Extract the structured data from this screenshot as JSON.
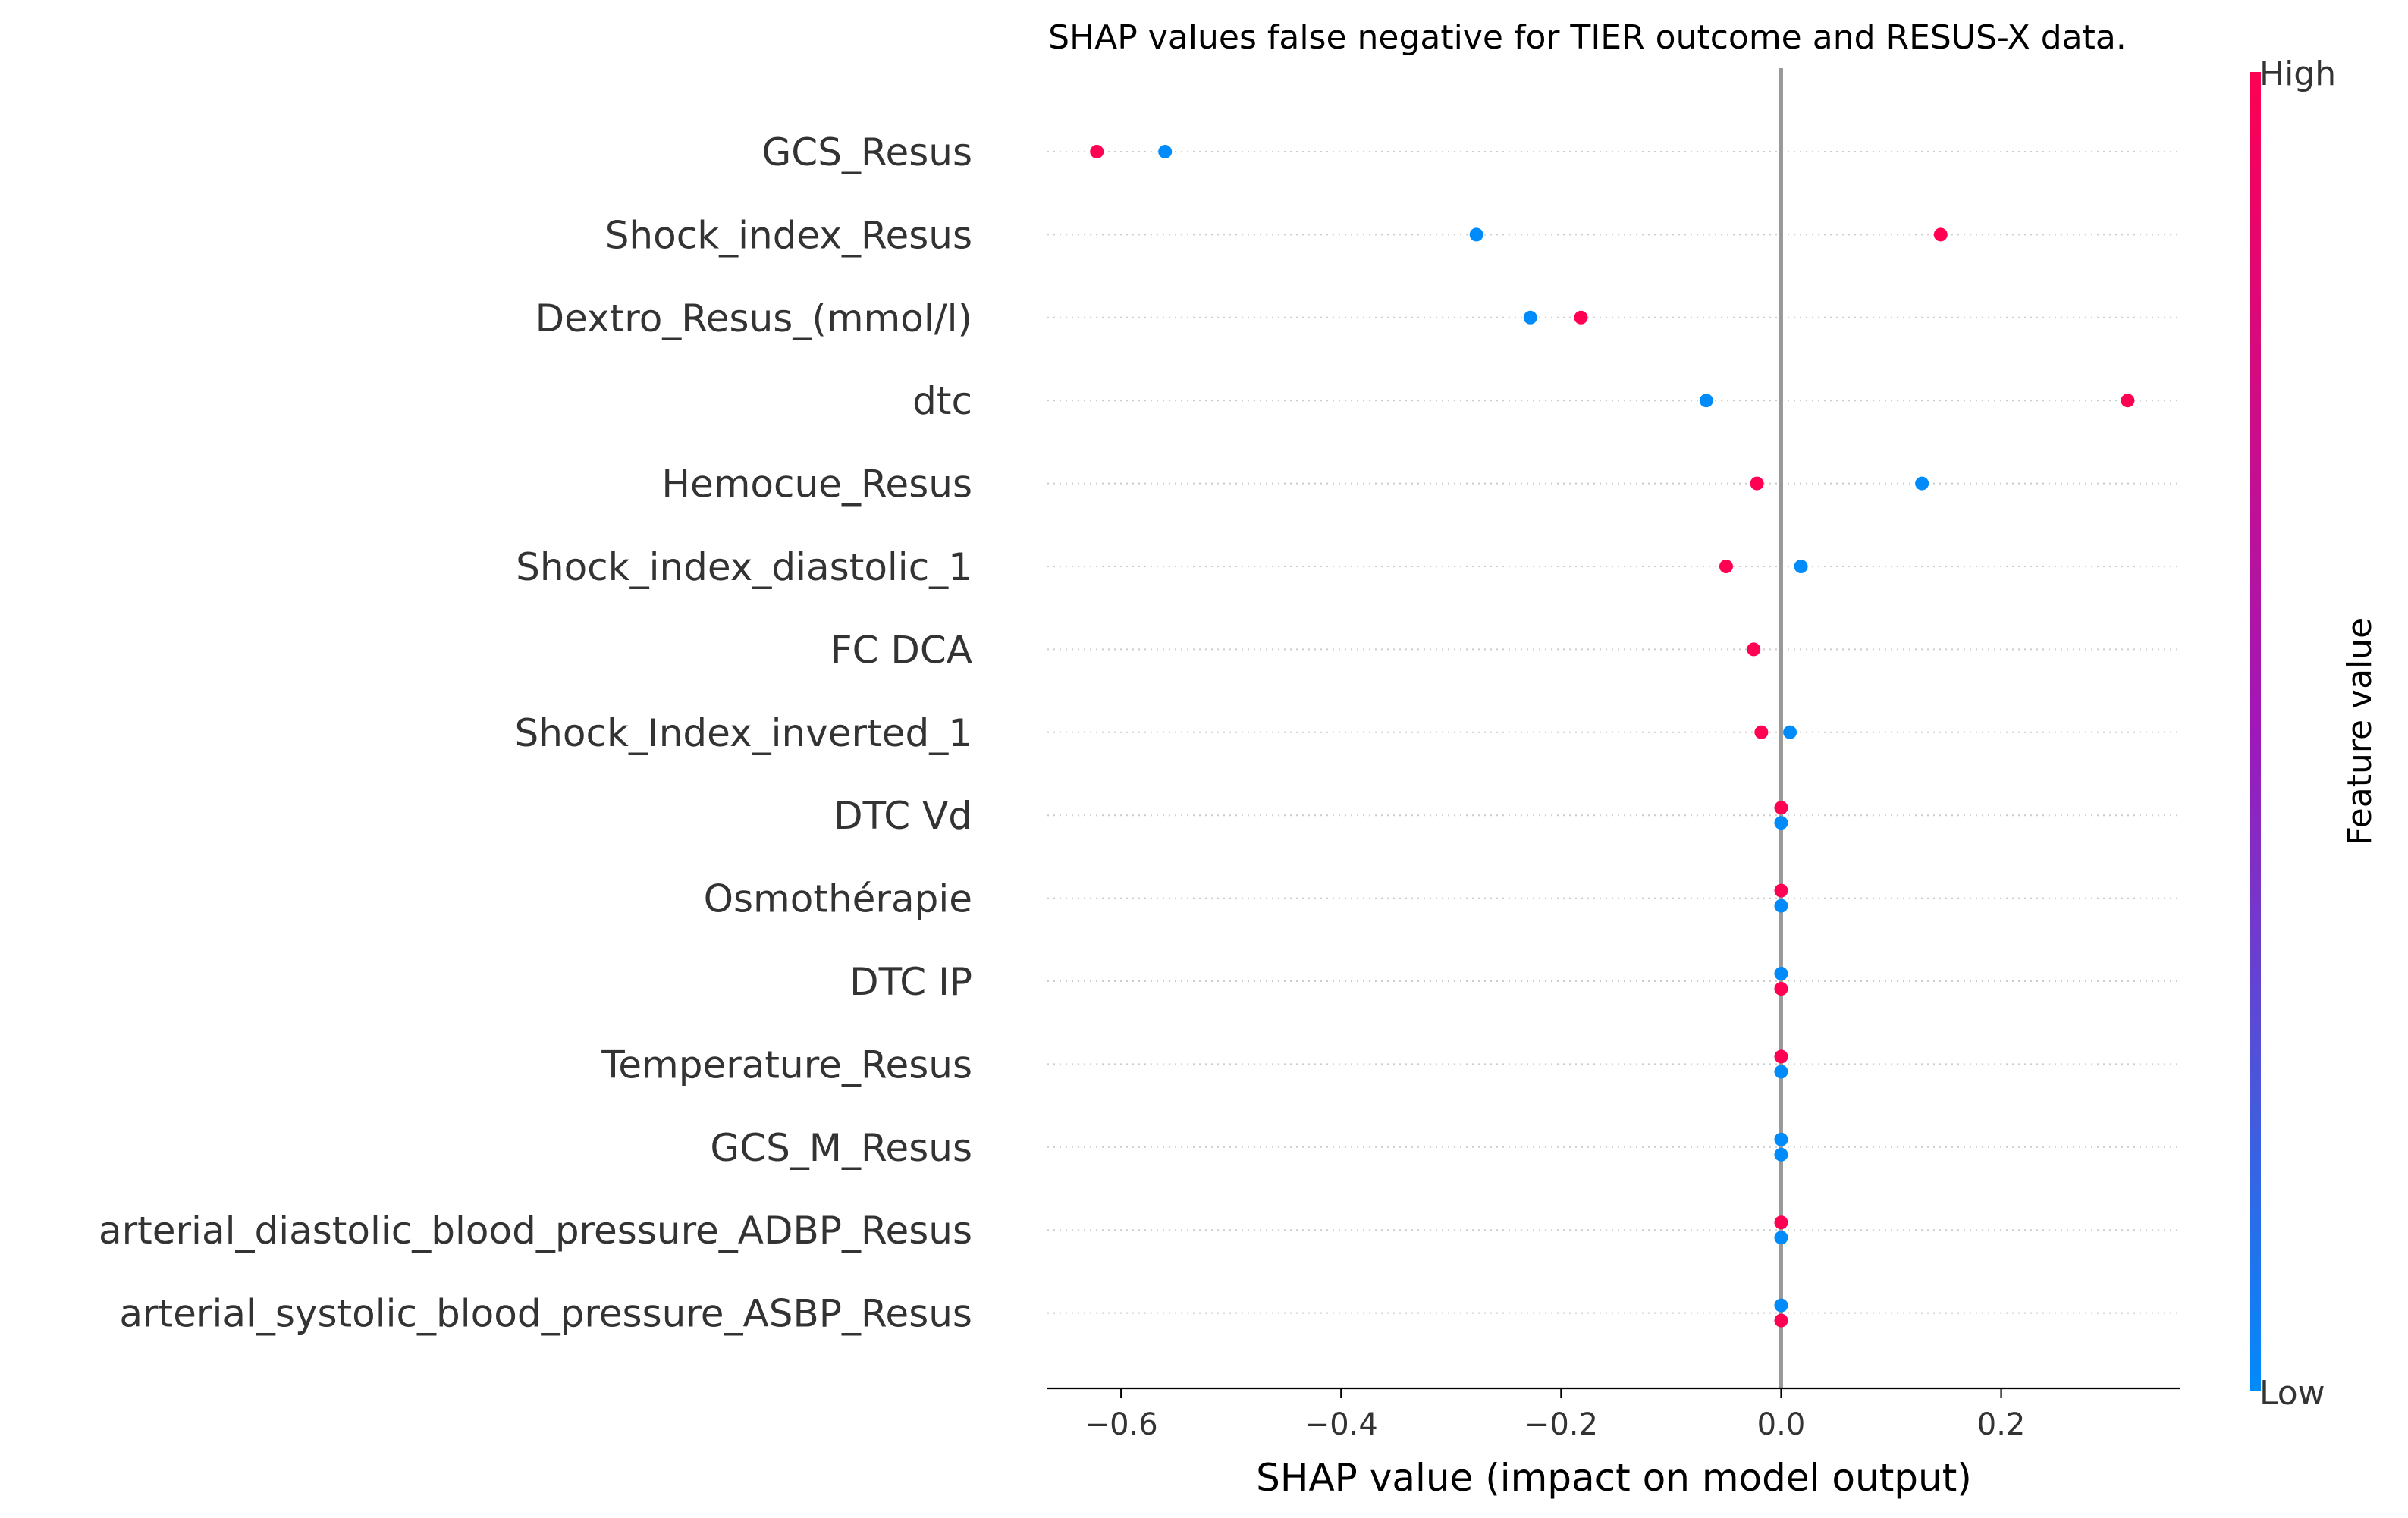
{
  "chart_data": {
    "type": "scatter",
    "subtype": "shap-beeswarm",
    "title": "SHAP values false negative for TIER outcome and RESUS-X data.",
    "xlabel": "SHAP value (impact on model output)",
    "ylabel": "",
    "xlim": [
      -0.667,
      0.363
    ],
    "xticks": [
      -0.6,
      -0.4,
      -0.2,
      0.0,
      0.2
    ],
    "xtick_labels": [
      "−0.6",
      "−0.4",
      "−0.2",
      "0.0",
      "0.2"
    ],
    "zero_line": true,
    "grid": false,
    "features": [
      "GCS_Resus",
      "Shock_index_Resus",
      "Dextro_Resus_(mmol/l)",
      "dtc",
      "Hemocue_Resus",
      "Shock_index_diastolic_1",
      "FC  DCA",
      "Shock_Index_inverted_1",
      "DTC Vd",
      "Osmothérapie",
      "DTC IP",
      "Temperature_Resus",
      "GCS_M_Resus",
      "arterial_diastolic_blood_pressure_ADBP_Resus",
      "arterial_systolic_blood_pressure_ASBP_Resus"
    ],
    "points": [
      {
        "feature": 0,
        "x": -0.622,
        "level": "high",
        "jitter": 0
      },
      {
        "feature": 0,
        "x": -0.56,
        "level": "low",
        "jitter": 0
      },
      {
        "feature": 1,
        "x": -0.277,
        "level": "low",
        "jitter": 0
      },
      {
        "feature": 1,
        "x": 0.145,
        "level": "high",
        "jitter": 0
      },
      {
        "feature": 2,
        "x": -0.228,
        "level": "low",
        "jitter": 0
      },
      {
        "feature": 2,
        "x": -0.182,
        "level": "high",
        "jitter": 0
      },
      {
        "feature": 3,
        "x": -0.068,
        "level": "low",
        "jitter": 0
      },
      {
        "feature": 3,
        "x": 0.315,
        "level": "high",
        "jitter": 0
      },
      {
        "feature": 4,
        "x": -0.022,
        "level": "high",
        "jitter": 0
      },
      {
        "feature": 4,
        "x": 0.128,
        "level": "low",
        "jitter": 0
      },
      {
        "feature": 5,
        "x": -0.05,
        "level": "high",
        "jitter": 0
      },
      {
        "feature": 5,
        "x": 0.018,
        "level": "low",
        "jitter": 0
      },
      {
        "feature": 6,
        "x": -0.025,
        "level": "high",
        "jitter": 0
      },
      {
        "feature": 7,
        "x": -0.018,
        "level": "high",
        "jitter": 0
      },
      {
        "feature": 7,
        "x": 0.008,
        "level": "low",
        "jitter": 0
      },
      {
        "feature": 8,
        "x": 0.0,
        "level": "high",
        "jitter": -1
      },
      {
        "feature": 8,
        "x": 0.0,
        "level": "low",
        "jitter": 1
      },
      {
        "feature": 9,
        "x": 0.0,
        "level": "high",
        "jitter": -1
      },
      {
        "feature": 9,
        "x": 0.0,
        "level": "low",
        "jitter": 1
      },
      {
        "feature": 10,
        "x": 0.0,
        "level": "low",
        "jitter": -1
      },
      {
        "feature": 10,
        "x": 0.0,
        "level": "high",
        "jitter": 1
      },
      {
        "feature": 11,
        "x": 0.0,
        "level": "high",
        "jitter": -1
      },
      {
        "feature": 11,
        "x": 0.0,
        "level": "low",
        "jitter": 1
      },
      {
        "feature": 12,
        "x": 0.0,
        "level": "low",
        "jitter": -1
      },
      {
        "feature": 12,
        "x": 0.0,
        "level": "low",
        "jitter": 1
      },
      {
        "feature": 13,
        "x": 0.0,
        "level": "high",
        "jitter": -1
      },
      {
        "feature": 13,
        "x": 0.0,
        "level": "low",
        "jitter": 1
      },
      {
        "feature": 14,
        "x": 0.0,
        "level": "low",
        "jitter": -1
      },
      {
        "feature": 14,
        "x": 0.0,
        "level": "high",
        "jitter": 1
      }
    ],
    "colorbar": {
      "label": "Feature value",
      "high_label": "High",
      "low_label": "Low",
      "high_color": "#ff0052",
      "mid_color": "#9f18b9",
      "low_color": "#008bfb"
    },
    "colors": {
      "high": "#ff0052",
      "low": "#008bfb",
      "zero_line": "#999999",
      "row_guide": "#cccccc",
      "text": "#333333"
    }
  }
}
